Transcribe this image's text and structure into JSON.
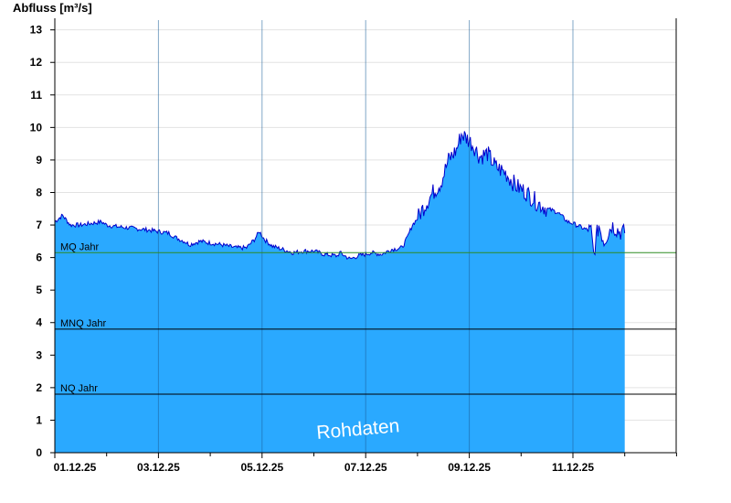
{
  "chart_data": {
    "type": "area",
    "ylabel": "Abfluss [m³/s]",
    "xlabel": "",
    "ylim": [
      0,
      13.3
    ],
    "yticks": [
      "0",
      "1",
      "2",
      "3",
      "4",
      "5",
      "6",
      "7",
      "8",
      "9",
      "10",
      "11",
      "12",
      "13"
    ],
    "x_start": "01.12.25",
    "x_end_days": 12,
    "x_ticks": [
      {
        "day": 0,
        "label": "01.12.25"
      },
      {
        "day": 2,
        "label": "03.12.25"
      },
      {
        "day": 4,
        "label": "05.12.25"
      },
      {
        "day": 6,
        "label": "07.12.25"
      },
      {
        "day": 8,
        "label": "09.12.25"
      },
      {
        "day": 10,
        "label": "11.12.25"
      }
    ],
    "series": [
      {
        "values": [
          [
            0.0,
            7.1
          ],
          [
            0.15,
            7.3
          ],
          [
            0.3,
            7.0
          ],
          [
            0.5,
            7.0
          ],
          [
            0.7,
            7.05
          ],
          [
            0.9,
            7.1
          ],
          [
            1.0,
            7.0
          ],
          [
            1.2,
            6.95
          ],
          [
            1.5,
            6.9
          ],
          [
            1.8,
            6.85
          ],
          [
            2.0,
            6.8
          ],
          [
            2.2,
            6.75
          ],
          [
            2.35,
            6.6
          ],
          [
            2.5,
            6.5
          ],
          [
            2.6,
            6.4
          ],
          [
            2.8,
            6.5
          ],
          [
            3.0,
            6.45
          ],
          [
            3.2,
            6.4
          ],
          [
            3.5,
            6.3
          ],
          [
            3.7,
            6.3
          ],
          [
            3.85,
            6.55
          ],
          [
            3.95,
            6.8
          ],
          [
            4.05,
            6.55
          ],
          [
            4.2,
            6.35
          ],
          [
            4.4,
            6.25
          ],
          [
            4.6,
            6.15
          ],
          [
            4.8,
            6.2
          ],
          [
            5.0,
            6.2
          ],
          [
            5.2,
            6.1
          ],
          [
            5.45,
            6.05
          ],
          [
            5.5,
            6.15
          ],
          [
            5.7,
            5.95
          ],
          [
            5.85,
            6.05
          ],
          [
            6.0,
            6.1
          ],
          [
            6.1,
            6.15
          ],
          [
            6.3,
            6.1
          ],
          [
            6.5,
            6.25
          ],
          [
            6.7,
            6.3
          ],
          [
            6.8,
            6.6
          ],
          [
            6.9,
            7.0
          ],
          [
            7.0,
            7.2
          ],
          [
            7.1,
            7.5
          ],
          [
            7.3,
            8.0
          ],
          [
            7.45,
            8.3
          ],
          [
            7.6,
            9.0
          ],
          [
            7.75,
            9.3
          ],
          [
            7.85,
            9.8
          ],
          [
            8.0,
            9.6
          ],
          [
            8.1,
            9.4
          ],
          [
            8.2,
            9.1
          ],
          [
            8.35,
            9.2
          ],
          [
            8.5,
            8.8
          ],
          [
            8.7,
            8.6
          ],
          [
            8.9,
            8.2
          ],
          [
            9.1,
            8.0
          ],
          [
            9.3,
            7.7
          ],
          [
            9.5,
            7.5
          ],
          [
            9.7,
            7.4
          ],
          [
            9.9,
            7.1
          ],
          [
            10.0,
            7.05
          ],
          [
            10.2,
            6.9
          ],
          [
            10.35,
            6.8
          ],
          [
            10.4,
            6.1
          ],
          [
            10.45,
            6.6
          ],
          [
            10.5,
            7.0
          ],
          [
            10.6,
            6.5
          ],
          [
            10.75,
            7.0
          ],
          [
            10.9,
            6.8
          ],
          [
            11.0,
            6.75
          ]
        ]
      }
    ],
    "reference_lines": [
      {
        "label": "MQ Jahr",
        "value": 6.15,
        "color": "#2e8b22"
      },
      {
        "label": "MNQ Jahr",
        "value": 3.8,
        "color": "#000000"
      },
      {
        "label": "NQ Jahr",
        "value": 1.8,
        "color": "#000000"
      }
    ],
    "watermark": "Rohdaten",
    "colors": {
      "fill": "#2aa9ff",
      "line": "#0000cc",
      "grid": "#e3e3e3",
      "axis": "#000000"
    },
    "grid": true
  }
}
